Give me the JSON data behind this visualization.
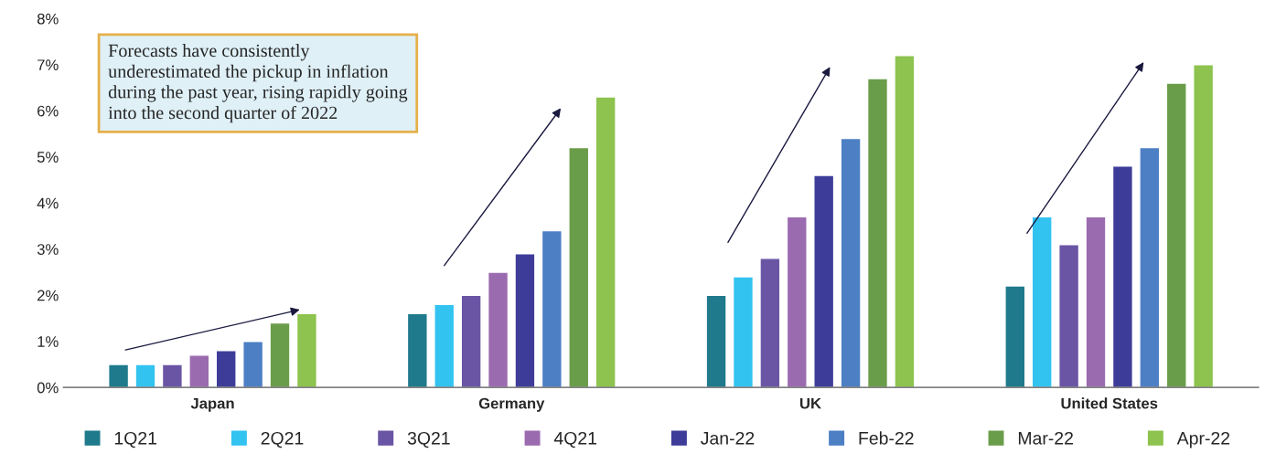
{
  "chart_data": {
    "type": "bar",
    "categories": [
      "Japan",
      "Germany",
      "UK",
      "United States"
    ],
    "series": [
      {
        "name": "1Q21",
        "color": "#1f7a8c",
        "values": [
          0.5,
          1.6,
          2.0,
          2.2
        ]
      },
      {
        "name": "2Q21",
        "color": "#33c3f0",
        "values": [
          0.5,
          1.8,
          2.4,
          3.7
        ]
      },
      {
        "name": "3Q21",
        "color": "#6a55a5",
        "values": [
          0.5,
          2.0,
          2.8,
          3.1
        ]
      },
      {
        "name": "4Q21",
        "color": "#9b6bb0",
        "values": [
          0.7,
          2.5,
          3.7,
          3.7
        ]
      },
      {
        "name": "Jan-22",
        "color": "#3d3d99",
        "values": [
          0.8,
          2.9,
          4.6,
          4.8
        ]
      },
      {
        "name": "Feb-22",
        "color": "#4d7fc4",
        "values": [
          1.0,
          3.4,
          5.4,
          5.2
        ]
      },
      {
        "name": "Mar-22",
        "color": "#6a9d4a",
        "values": [
          1.4,
          5.2,
          6.7,
          6.6
        ]
      },
      {
        "name": "Apr-22",
        "color": "#8dc34e",
        "values": [
          1.6,
          6.3,
          7.2,
          7.0
        ]
      }
    ],
    "ylim": [
      0,
      8
    ],
    "yticks": [
      {
        "value": 0,
        "label": "0%"
      },
      {
        "value": 1,
        "label": "1%"
      },
      {
        "value": 2,
        "label": "2%"
      },
      {
        "value": 3,
        "label": "3%"
      },
      {
        "value": 4,
        "label": "4%"
      },
      {
        "value": 5,
        "label": "5%"
      },
      {
        "value": 6,
        "label": "6%"
      },
      {
        "value": 7,
        "label": "7%"
      },
      {
        "value": 8,
        "label": "8%"
      }
    ],
    "annotations": [
      "Forecasts have consistently underestimated the pickup in inflation during the past year, rising rapidly going into the second quarter of 2022"
    ],
    "grid": false,
    "legend": "bottom"
  }
}
